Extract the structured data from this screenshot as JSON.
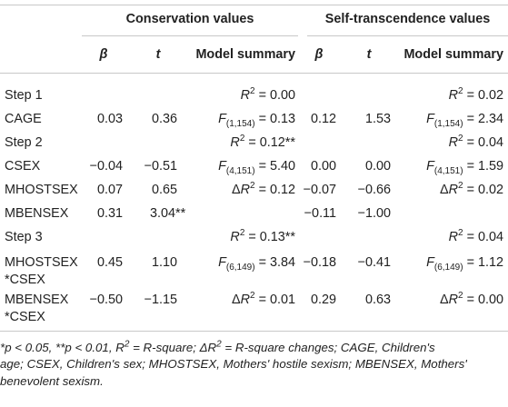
{
  "table": {
    "group_headers": {
      "conservation": "Conservation values",
      "self_transcendence": "Self-transcendence values"
    },
    "col_headers": {
      "beta": "β",
      "t": "t",
      "model_summary": "Model summary"
    },
    "rows": [
      {
        "label": "Step 1",
        "cons": {
          "beta": "",
          "t": "",
          "ms": "R2 = 0.00"
        },
        "self": {
          "beta": "",
          "t": "",
          "ms": "R2 = 0.02"
        }
      },
      {
        "label": "CAGE",
        "cons": {
          "beta": "0.03",
          "t": "0.36",
          "ms": "F(1,154) = 0.13"
        },
        "self": {
          "beta": "0.12",
          "t": "1.53",
          "ms": "F(1,154) = 2.34"
        }
      },
      {
        "label": "Step 2",
        "cons": {
          "beta": "",
          "t": "",
          "ms": "R2 = 0.12**"
        },
        "self": {
          "beta": "",
          "t": "",
          "ms": "R2 = 0.04"
        }
      },
      {
        "label": "CSEX",
        "cons": {
          "beta": "−0.04",
          "t": "−0.51",
          "ms": "F(4,151) = 5.40"
        },
        "self": {
          "beta": "0.00",
          "t": "0.00",
          "ms": "F(4,151) = 1.59"
        }
      },
      {
        "label": "MHOSTSEX",
        "cons": {
          "beta": "0.07",
          "t": "0.65",
          "ms": "ΔR2 = 0.12"
        },
        "self": {
          "beta": "−0.07",
          "t": "−0.66",
          "ms": "ΔR2 = 0.02"
        }
      },
      {
        "label": "MBENSEX",
        "cons": {
          "beta": "0.31",
          "t": "3.04**",
          "ms": ""
        },
        "self": {
          "beta": "−0.11",
          "t": "−1.00",
          "ms": ""
        }
      },
      {
        "label": "Step 3",
        "cons": {
          "beta": "",
          "t": "",
          "ms": "R2 = 0.13**"
        },
        "self": {
          "beta": "",
          "t": "",
          "ms": "R2 = 0.04"
        }
      },
      {
        "label": "MHOSTSEX *CSEX",
        "cons": {
          "beta": "0.45",
          "t": "1.10",
          "ms": "F(6,149) = 3.84"
        },
        "self": {
          "beta": "−0.18",
          "t": "−0.41",
          "ms": "F(6,149) = 1.12"
        }
      },
      {
        "label": "MBENSEX *CSEX",
        "cons": {
          "beta": "−0.50",
          "t": "−1.15",
          "ms": "ΔR2 = 0.01"
        },
        "self": {
          "beta": "0.29",
          "t": "0.63",
          "ms": "ΔR2 = 0.00"
        }
      }
    ]
  },
  "footnote": {
    "line1": "*p < 0.05, **p < 0.01, R2 = R-square; ΔR2 = R-square changes; CAGE, Children's",
    "line2": "age; CSEX, Children's sex; MHOSTSEX, Mothers' hostile sexism; MBENSEX, Mothers'",
    "line3": "benevolent sexism."
  }
}
